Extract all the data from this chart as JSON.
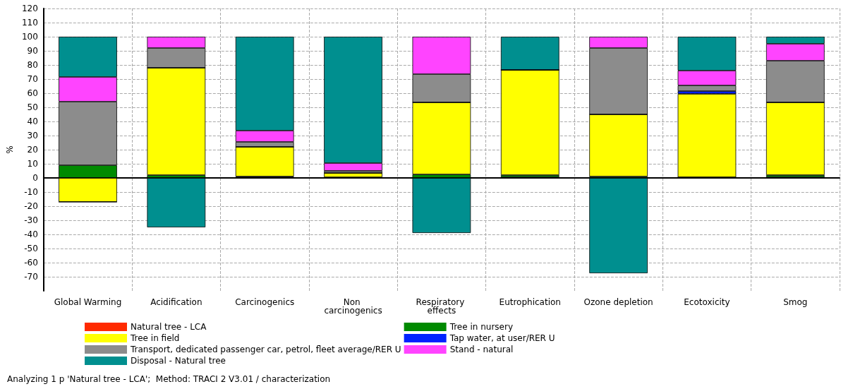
{
  "chart_data": {
    "type": "bar",
    "stacked": true,
    "ylabel": "%",
    "categories": [
      "Global Warming",
      "Acidification",
      "Carcinogenics",
      "Non carcinogenics",
      "Respiratory effects",
      "Eutrophication",
      "Ozone depletion",
      "Ecotoxicity",
      "Smog"
    ],
    "series": [
      {
        "name": "Natural tree - LCA",
        "color": "#ff2a00",
        "values": [
          0,
          0,
          0.5,
          0,
          0,
          0.5,
          0,
          0.5,
          0.5
        ]
      },
      {
        "name": "Tree in nursery",
        "color": "#008a00",
        "values": [
          9,
          2,
          0.5,
          0.5,
          2.5,
          1.5,
          1,
          0,
          1.5
        ]
      },
      {
        "name": "Tree in field",
        "color": "#ffff00",
        "values": [
          -17,
          76,
          21,
          3,
          51,
          74.5,
          44,
          59,
          51.5
        ]
      },
      {
        "name": "Tap water, at user/RER U",
        "color": "#0022ff",
        "values": [
          0,
          0,
          0,
          0,
          0,
          0,
          0,
          2,
          0
        ]
      },
      {
        "name": "Transport, dedicated passenger car, petrol, fleet average/RER U",
        "color": "#8c8c8c",
        "values": [
          45,
          14,
          3.5,
          1.5,
          20,
          null,
          47,
          4,
          29.5
        ]
      },
      {
        "name": "Stand - natural",
        "color": "#ff44ff",
        "values": [
          17.5,
          8,
          8,
          5.5,
          26.5,
          0,
          8,
          10.5,
          12
        ]
      },
      {
        "name": "Disposal - Natural tree",
        "color": "#008f8f",
        "values": [
          28.5,
          -35,
          66.5,
          89.5,
          -39,
          23.5,
          -67.5,
          24,
          5
        ]
      }
    ],
    "ylim": [
      -80,
      120
    ],
    "yticks": [
      -70,
      -60,
      -50,
      -40,
      -30,
      -20,
      -10,
      0,
      10,
      20,
      30,
      40,
      50,
      60,
      70,
      80,
      90,
      100,
      110,
      120
    ],
    "grid": true,
    "legend": "bottom",
    "annotations": [
      "Analyzing 1 p 'Natural tree - LCA';  Method: TRACI 2 V3.01 / characterization"
    ]
  }
}
